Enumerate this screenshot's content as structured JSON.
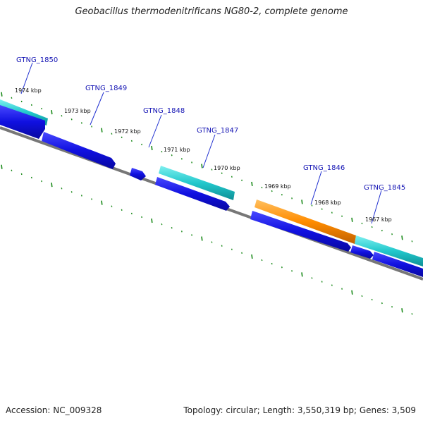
{
  "title": "Geobacillus thermodenitrificans NG80-2, complete genome",
  "footer": {
    "accession": "Accession: NC_009328",
    "topology": "Topology: circular; Length: 3,550,319 bp; Genes: 3,509"
  },
  "genes": [
    {
      "id": "GTNG_1850"
    },
    {
      "id": "GTNG_1849"
    },
    {
      "id": "GTNG_1848"
    },
    {
      "id": "GTNG_1847"
    },
    {
      "id": "GTNG_1846"
    },
    {
      "id": "GTNG_1845"
    }
  ],
  "kbp_ticks": [
    "1974 kbp",
    "1973 kbp",
    "1972 kbp",
    "1971 kbp",
    "1970 kbp",
    "1969 kbp",
    "1968 kbp",
    "1967 kbp"
  ],
  "colors": {
    "cds": "#1010e0",
    "gene_highlight_cyan": "#22c8cc",
    "gene_highlight_orange": "#ff8c00",
    "backbone": "#777777",
    "tick": "#1a8a1a",
    "label": "#1414b4"
  }
}
